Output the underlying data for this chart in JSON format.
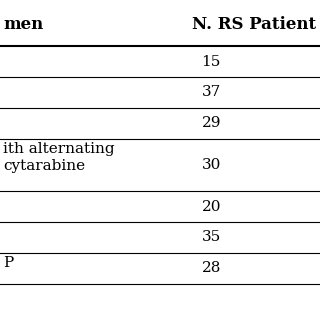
{
  "col1_header": "men",
  "col2_header": "N. RS Patient Re",
  "rows": [
    {
      "col1": "",
      "col2": "15"
    },
    {
      "col1": "",
      "col2": "37"
    },
    {
      "col1": "",
      "col2": "29"
    },
    {
      "col1": "ith alternating\ncytarabine",
      "col2": "30"
    },
    {
      "col1": "",
      "col2": "20"
    },
    {
      "col1": "",
      "col2": "35"
    },
    {
      "col1": "P",
      "col2": "28"
    }
  ],
  "bg_color": "#ffffff",
  "header_line_color": "#000000",
  "row_line_color": "#000000",
  "text_color": "#000000",
  "font_size": 11,
  "header_font_size": 12
}
